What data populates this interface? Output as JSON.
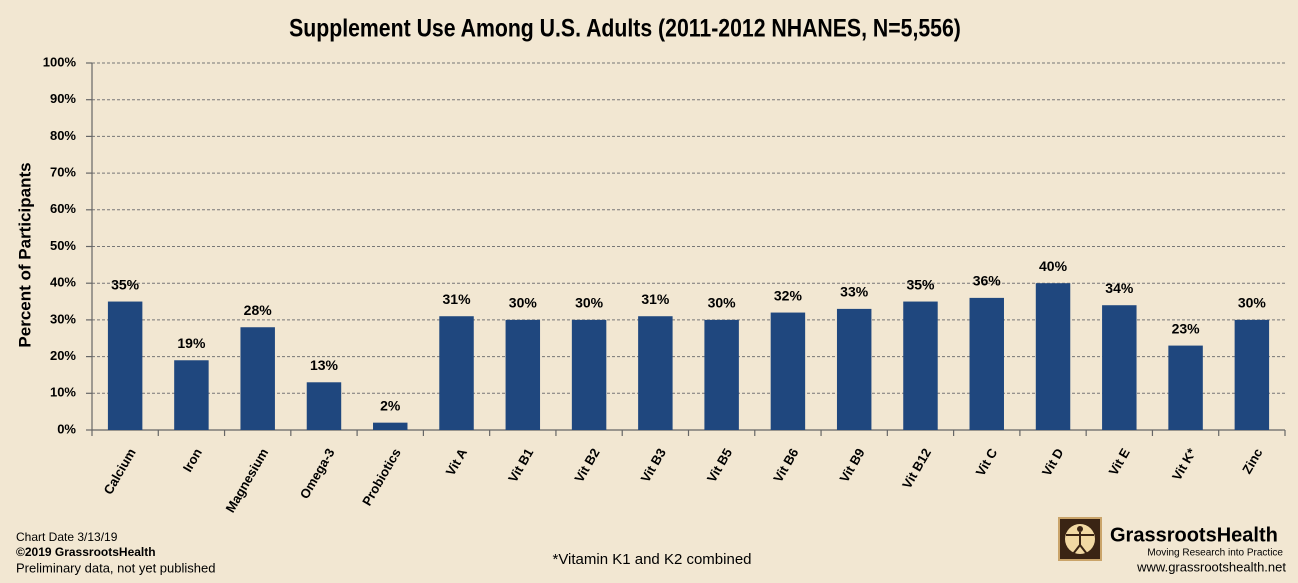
{
  "chart_data": {
    "type": "bar",
    "title": "Supplement Use Among U.S. Adults (2011-2012 NHANES, N=5,556)",
    "y_label": "Percent of Participants",
    "categories": [
      "Calcium",
      "Iron",
      "Magnesium",
      "Omega-3",
      "Probiotics",
      "Vit A",
      "Vit B1",
      "Vit B2",
      "Vit B3",
      "Vit B5",
      "Vit B6",
      "Vit B9",
      "Vit B12",
      "Vit C",
      "Vit D",
      "Vit E",
      "Vit K*",
      "Zinc"
    ],
    "values": [
      35,
      19,
      28,
      13,
      2,
      31,
      30,
      30,
      31,
      30,
      32,
      33,
      35,
      36,
      40,
      34,
      23,
      30
    ],
    "value_labels": [
      "35%",
      "19%",
      "28%",
      "13%",
      "2%",
      "31%",
      "30%",
      "30%",
      "31%",
      "30%",
      "32%",
      "33%",
      "35%",
      "36%",
      "40%",
      "34%",
      "23%",
      "30%"
    ],
    "color": "#1f477e",
    "ylim": [
      0,
      100
    ],
    "yticks": [
      {
        "value": 0,
        "label": "0%"
      },
      {
        "value": 10,
        "label": "10%"
      },
      {
        "value": 20,
        "label": "20%"
      },
      {
        "value": 30,
        "label": "30%"
      },
      {
        "value": 40,
        "label": "40%"
      },
      {
        "value": 50,
        "label": "50%"
      },
      {
        "value": 60,
        "label": "60%"
      },
      {
        "value": 70,
        "label": "70%"
      },
      {
        "value": 80,
        "label": "80%"
      },
      {
        "value": 90,
        "label": "90%"
      },
      {
        "value": 100,
        "label": "100%"
      }
    ],
    "grid": true,
    "footnote": "*Vitamin K1 and K2 combined",
    "chart_date": "Chart Date 3/13/19",
    "copyright": "©2019 GrassrootsHealth",
    "status_note": "Preliminary data, not yet published",
    "brand": "GrassrootsHealth",
    "tagline": "Moving Research into Practice",
    "website": "www.grassrootshealth.net"
  }
}
